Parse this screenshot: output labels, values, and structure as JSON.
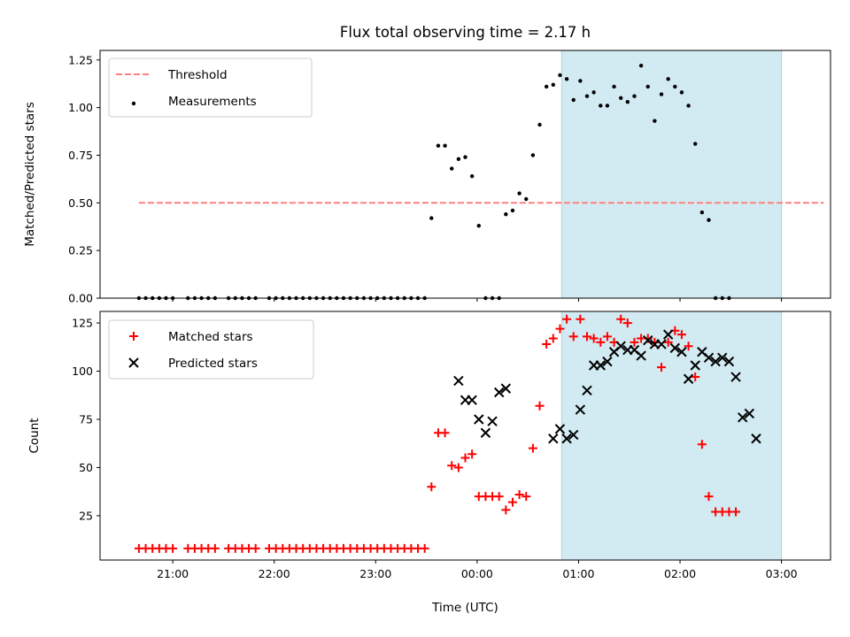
{
  "chart_data": [
    {
      "type": "scatter",
      "title": "Flux total observing time = 2.17 h",
      "ylabel": "Matched/Predicted stars",
      "xlabel": "",
      "ylim": [
        0,
        1.3
      ],
      "yticks": [
        "0.00",
        "0.25",
        "0.50",
        "0.75",
        "1.00",
        "1.25"
      ],
      "ytick_values": [
        0,
        0.25,
        0.5,
        0.75,
        1.0,
        1.25
      ],
      "shaded_region": {
        "from": "00:50",
        "to": "03:00",
        "color": "#add8e6"
      },
      "threshold": {
        "name": "Threshold",
        "value": 0.5,
        "x_from": "20:40",
        "x_to": "03:25",
        "color": "#ff7f7f"
      },
      "legend": {
        "position": "upper left",
        "entries": [
          "Threshold",
          "Measurements"
        ]
      },
      "series": [
        {
          "name": "Measurements",
          "color": "#000000",
          "x": [
            "20:40",
            "20:44",
            "20:48",
            "20:52",
            "20:56",
            "21:00",
            "21:09",
            "21:13",
            "21:17",
            "21:21",
            "21:25",
            "21:33",
            "21:37",
            "21:41",
            "21:45",
            "21:49",
            "21:57",
            "22:01",
            "22:05",
            "22:09",
            "22:13",
            "22:17",
            "22:21",
            "22:25",
            "22:29",
            "22:33",
            "22:37",
            "22:41",
            "22:45",
            "22:49",
            "22:53",
            "22:57",
            "23:01",
            "23:05",
            "23:09",
            "23:13",
            "23:17",
            "23:21",
            "23:25",
            "23:29",
            "23:33",
            "23:37",
            "23:41",
            "23:45",
            "23:49",
            "23:53",
            "23:57",
            "00:01",
            "00:05",
            "00:09",
            "00:13",
            "00:17",
            "00:21",
            "00:25",
            "00:29",
            "00:33",
            "00:37",
            "00:41",
            "00:45",
            "00:49",
            "00:53",
            "00:57",
            "01:01",
            "01:05",
            "01:09",
            "01:13",
            "01:17",
            "01:21",
            "01:25",
            "01:29",
            "01:33",
            "01:37",
            "01:41",
            "01:45",
            "01:49",
            "01:53",
            "01:57",
            "02:01",
            "02:05",
            "02:09",
            "02:13",
            "02:17",
            "02:21",
            "02:25",
            "02:29",
            "02:33",
            "02:37",
            "02:41",
            "02:45",
            "02:49",
            "02:53",
            "02:57",
            "03:01",
            "03:05",
            "03:09",
            "03:13",
            "03:17",
            "03:21",
            "03:25"
          ],
          "y": [
            0,
            0,
            0,
            0,
            0,
            0,
            0,
            0,
            0,
            0,
            0,
            0,
            0,
            0,
            0,
            0,
            0,
            0,
            0,
            0,
            0,
            0,
            0,
            0,
            0,
            0,
            0,
            0,
            0,
            0,
            0,
            0,
            0,
            0,
            0,
            0,
            0,
            0,
            0,
            0,
            0.42,
            0.8,
            0.8,
            0.68,
            0.73,
            0.74,
            0.64,
            0.38,
            0,
            0,
            0,
            0.44,
            0.46,
            0.55,
            0.52,
            0.75,
            0.91,
            1.11,
            1.12,
            1.17,
            1.15,
            1.04,
            1.14,
            1.06,
            1.08,
            1.01,
            1.01,
            1.11,
            1.05,
            1.03,
            1.06,
            1.22,
            1.11,
            0.93,
            1.07,
            1.15,
            1.11,
            1.08,
            1.01,
            0.81,
            0.45,
            0.41,
            0,
            0,
            0,
            null,
            null,
            null,
            null,
            null,
            null,
            null,
            null,
            null,
            null,
            null,
            null,
            null,
            null
          ]
        }
      ]
    },
    {
      "type": "scatter",
      "title": "",
      "ylabel": "Count",
      "xlabel": "Time (UTC)",
      "ylim": [
        2,
        131
      ],
      "yticks": [
        "25",
        "50",
        "75",
        "100",
        "125"
      ],
      "ytick_values": [
        25,
        50,
        75,
        100,
        125
      ],
      "xticks": [
        "21:00",
        "22:00",
        "23:00",
        "00:00",
        "01:00",
        "02:00",
        "03:00"
      ],
      "shaded_region": {
        "from": "00:50",
        "to": "03:00",
        "color": "#add8e6"
      },
      "legend": {
        "position": "upper left",
        "entries": [
          "Matched stars",
          "Predicted stars"
        ]
      },
      "series": [
        {
          "name": "Matched stars",
          "color": "#ff0000",
          "marker": "+",
          "x": [
            "20:40",
            "20:44",
            "20:48",
            "20:52",
            "20:56",
            "21:00",
            "21:09",
            "21:13",
            "21:17",
            "21:21",
            "21:25",
            "21:33",
            "21:37",
            "21:41",
            "21:45",
            "21:49",
            "21:57",
            "22:01",
            "22:05",
            "22:09",
            "22:13",
            "22:17",
            "22:21",
            "22:25",
            "22:29",
            "22:33",
            "22:37",
            "22:41",
            "22:45",
            "22:49",
            "22:53",
            "22:57",
            "23:01",
            "23:05",
            "23:09",
            "23:13",
            "23:17",
            "23:21",
            "23:25",
            "23:29",
            "23:33",
            "23:37",
            "23:41",
            "23:45",
            "23:49",
            "23:53",
            "23:57",
            "00:01",
            "00:05",
            "00:09",
            "00:13",
            "00:17",
            "00:21",
            "00:25",
            "00:29",
            "00:33",
            "00:37",
            "00:41",
            "00:45",
            "00:49",
            "00:53",
            "00:57",
            "01:01",
            "01:05",
            "01:09",
            "01:13",
            "01:17",
            "01:21",
            "01:25",
            "01:29",
            "01:33",
            "01:37",
            "01:41",
            "01:45",
            "01:49",
            "01:53",
            "01:57",
            "02:01",
            "02:05",
            "02:09",
            "02:13",
            "02:17",
            "02:21",
            "02:25",
            "02:29",
            "02:33",
            "02:37",
            "02:41",
            "02:45",
            "02:49",
            "02:53",
            "02:57",
            "03:01",
            "03:05",
            "03:09",
            "03:13",
            "03:17",
            "03:21",
            "03:25"
          ],
          "y": [
            8,
            8,
            8,
            8,
            8,
            8,
            8,
            8,
            8,
            8,
            8,
            8,
            8,
            8,
            8,
            8,
            8,
            8,
            8,
            8,
            8,
            8,
            8,
            8,
            8,
            8,
            8,
            8,
            8,
            8,
            8,
            8,
            8,
            8,
            8,
            8,
            8,
            8,
            8,
            8,
            40,
            68,
            68,
            51,
            50,
            55,
            57,
            35,
            35,
            35,
            35,
            28,
            32,
            36,
            35,
            60,
            82,
            114,
            117,
            122,
            127,
            118,
            127,
            118,
            117,
            115,
            118,
            115,
            127,
            125,
            115,
            117,
            117,
            115,
            102,
            115,
            121,
            119,
            113,
            97,
            62,
            35,
            27,
            27,
            27,
            27,
            null,
            null,
            null,
            null,
            null,
            null,
            null,
            null,
            null,
            null,
            null,
            null,
            null
          ]
        },
        {
          "name": "Predicted stars",
          "color": "#000000",
          "marker": "x",
          "x": [
            "23:49",
            "23:53",
            "23:57",
            "00:01",
            "00:05",
            "00:09",
            "00:13",
            "00:17",
            "00:21",
            "00:45",
            "00:49",
            "00:53",
            "00:57",
            "01:01",
            "01:05",
            "01:09",
            "01:13",
            "01:17",
            "01:21",
            "01:25",
            "01:29",
            "01:33",
            "01:37",
            "01:41",
            "01:45",
            "01:49",
            "01:53",
            "01:57",
            "02:01",
            "02:05",
            "02:09",
            "02:13",
            "02:17",
            "02:21",
            "02:25",
            "02:29",
            "02:33",
            "02:37",
            "02:41",
            "02:45",
            "02:49",
            "02:53",
            "02:57",
            "03:01",
            "03:05",
            "03:09",
            "03:13"
          ],
          "y": [
            95,
            85,
            85,
            75,
            68,
            74,
            89,
            91,
            null,
            65,
            70,
            65,
            67,
            80,
            90,
            103,
            103,
            105,
            110,
            113,
            111,
            111,
            108,
            116,
            114,
            114,
            119,
            112,
            110,
            96,
            103,
            110,
            107,
            105,
            107,
            105,
            97,
            76,
            78,
            65,
            null,
            null,
            null,
            null,
            null,
            null,
            null
          ]
        }
      ]
    }
  ]
}
